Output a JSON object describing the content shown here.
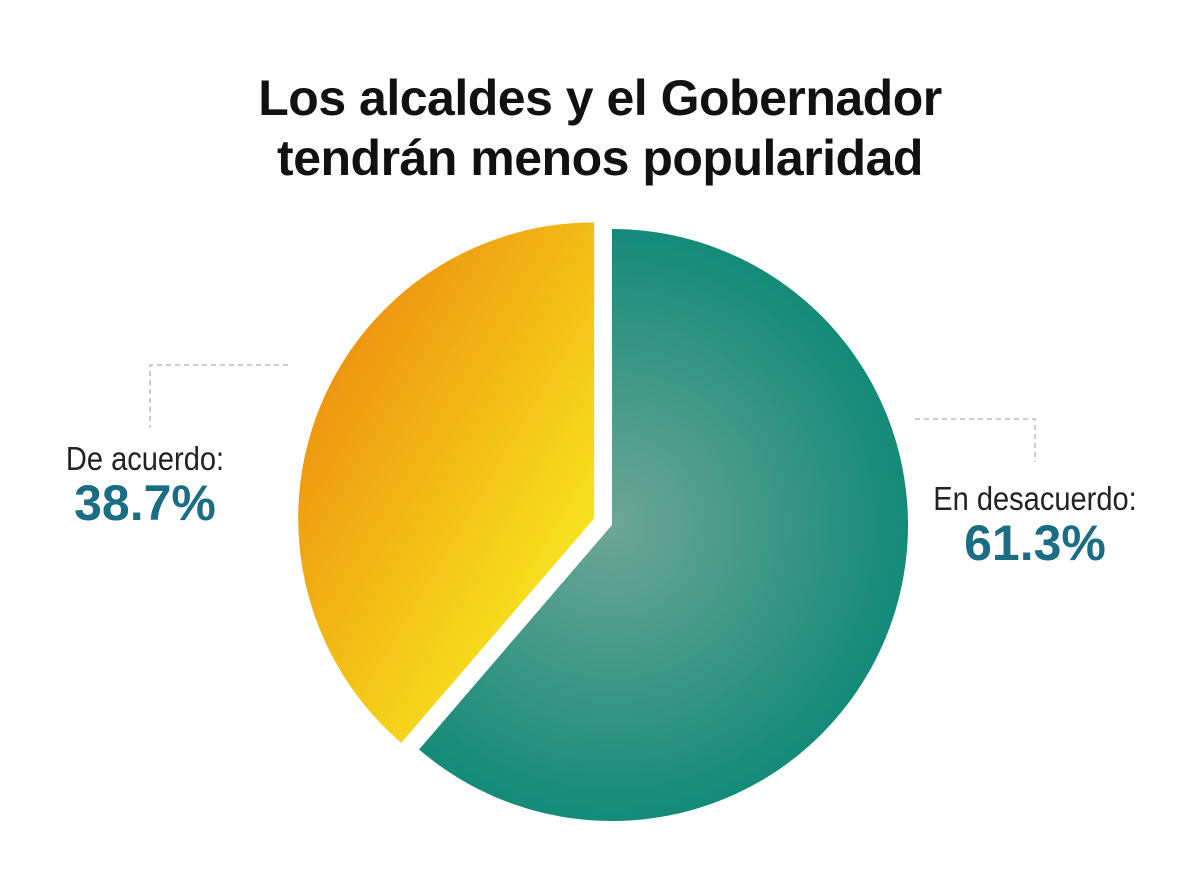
{
  "chart_data": {
    "type": "pie",
    "title_line1": "Los alcaldes y el Gobernador",
    "title_line2": "tendrán menos popularidad",
    "slices": [
      {
        "label": "En desacuerdo:",
        "value": 61.3,
        "value_label": "61.3%",
        "color": "#1a8a7a",
        "exploded": false
      },
      {
        "label": "De acuerdo:",
        "value": 38.7,
        "value_label": "38.7%",
        "color": "#f4b013",
        "exploded": true
      }
    ],
    "start_angle": "12 o'clock",
    "direction": "clockwise"
  },
  "colors": {
    "value_text": "#1a6d83",
    "leader": "#bbbbbb"
  }
}
